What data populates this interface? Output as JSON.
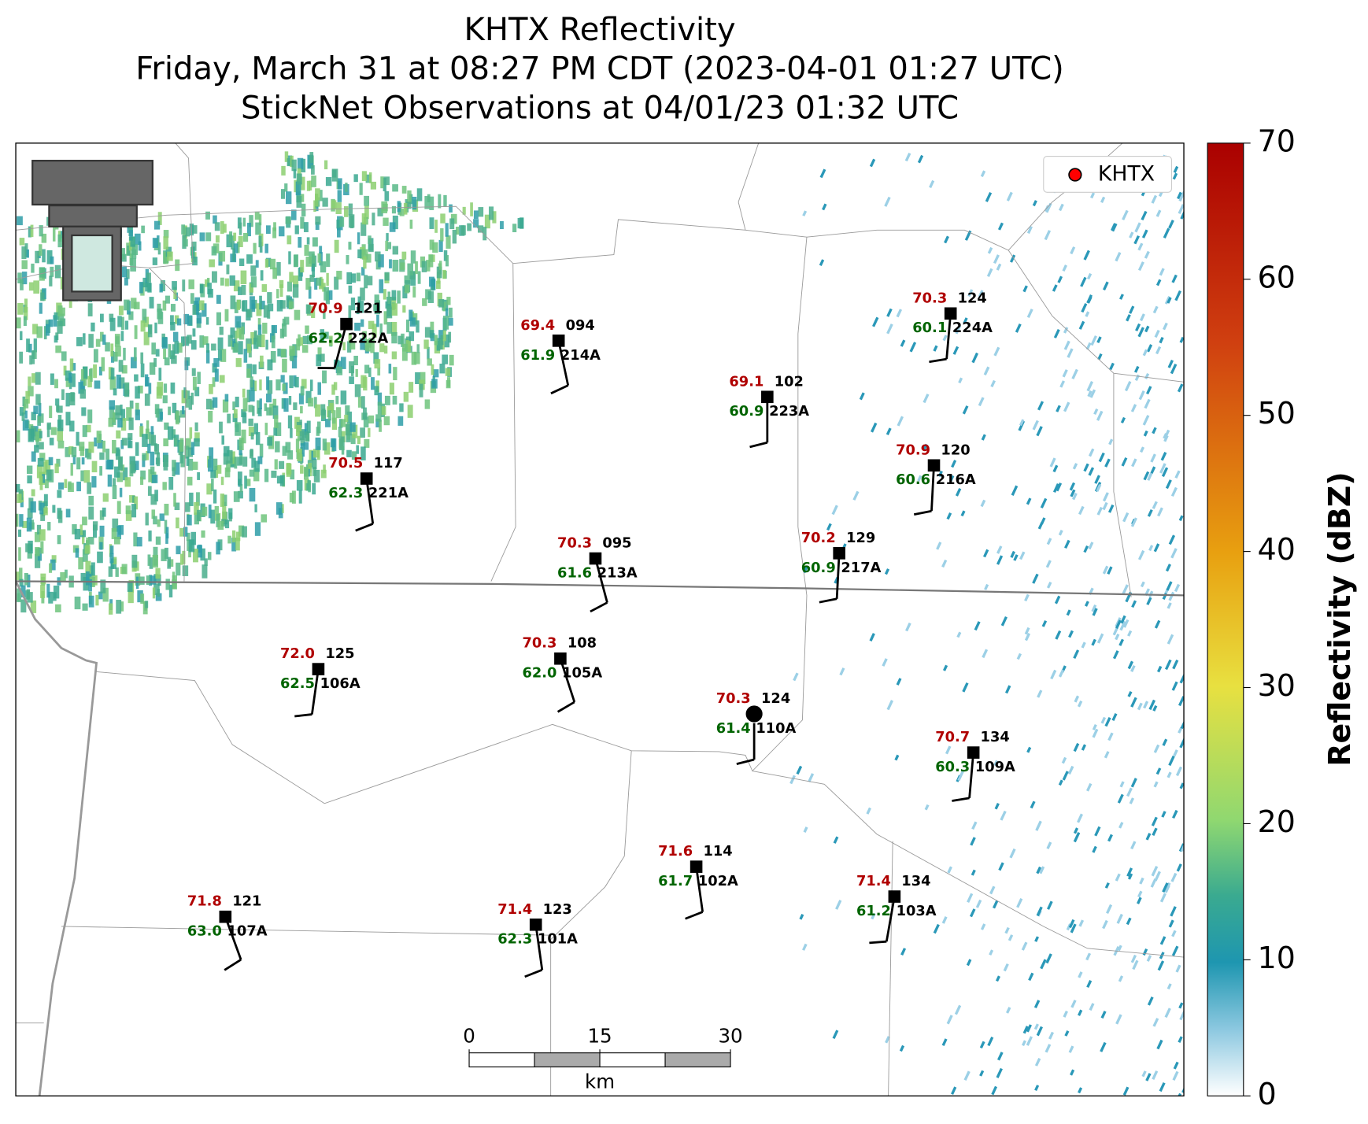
{
  "header": {
    "title": "KHTX Reflectivity",
    "subtitle": "Friday, March 31 at 08:27 PM CDT (2023-04-01 01:27 UTC)",
    "observations": "StickNet Observations at 04/01/23 01:32 UTC"
  },
  "legend": {
    "label": "KHTX",
    "color": "#ff0000"
  },
  "colorbar": {
    "label": "Reflectivity (dBZ)",
    "lim": [
      0,
      70
    ],
    "ticks": [
      0,
      10,
      20,
      30,
      40,
      50,
      60,
      70
    ]
  },
  "scale_bar": {
    "lim": [
      0,
      30
    ],
    "ticks": [
      0,
      15,
      30
    ],
    "unit": "km"
  },
  "stations": [
    {
      "id": "222A",
      "temperature": "70.9",
      "dewpoint": "62.2",
      "pressure": "121"
    },
    {
      "id": "214A",
      "temperature": "69.4",
      "dewpoint": "61.9",
      "pressure": "094"
    },
    {
      "id": "223A",
      "temperature": "69.1",
      "dewpoint": "60.9",
      "pressure": "102"
    },
    {
      "id": "224A",
      "temperature": "70.3",
      "dewpoint": "60.1",
      "pressure": "124"
    },
    {
      "id": "216A",
      "temperature": "70.9",
      "dewpoint": "60.6",
      "pressure": "120"
    },
    {
      "id": "221A",
      "temperature": "70.5",
      "dewpoint": "62.3",
      "pressure": "117"
    },
    {
      "id": "213A",
      "temperature": "70.3",
      "dewpoint": "61.6",
      "pressure": "095"
    },
    {
      "id": "217A",
      "temperature": "70.2",
      "dewpoint": "60.9",
      "pressure": "129"
    },
    {
      "id": "106A",
      "temperature": "72.0",
      "dewpoint": "62.5",
      "pressure": "125"
    },
    {
      "id": "105A",
      "temperature": "70.3",
      "dewpoint": "62.0",
      "pressure": "108"
    },
    {
      "id": "110A",
      "temperature": "70.3",
      "dewpoint": "61.4",
      "pressure": "124"
    },
    {
      "id": "109A",
      "temperature": "70.7",
      "dewpoint": "60.3",
      "pressure": "134"
    },
    {
      "id": "102A",
      "temperature": "71.6",
      "dewpoint": "61.7",
      "pressure": "114"
    },
    {
      "id": "103A",
      "temperature": "71.4",
      "dewpoint": "61.2",
      "pressure": "134"
    },
    {
      "id": "107A",
      "temperature": "71.8",
      "dewpoint": "63.0",
      "pressure": "121"
    },
    {
      "id": "101A",
      "temperature": "71.4",
      "dewpoint": "62.3",
      "pressure": "123"
    }
  ]
}
